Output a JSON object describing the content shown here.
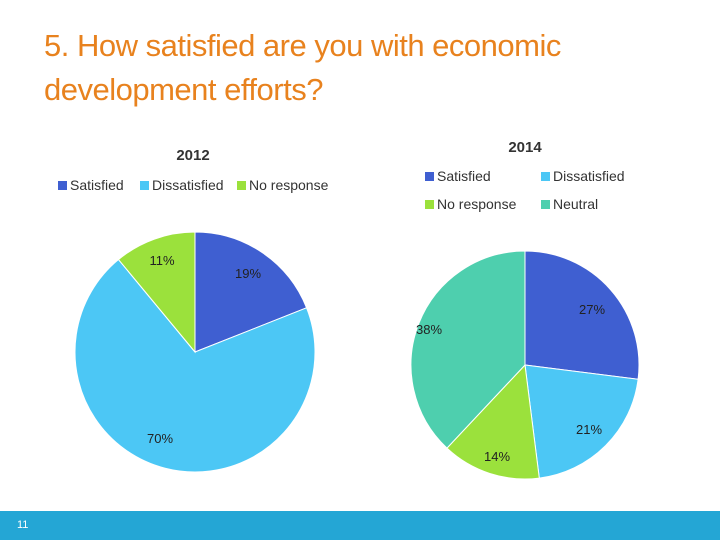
{
  "slide": {
    "title": "5. How satisfied are you with economic development efforts?",
    "page_number": "11"
  },
  "colors": {
    "title": "#e8821e",
    "footer": "#24a6d5",
    "satisfied": "#3f5fd1",
    "dissatisfied": "#4cc7f5",
    "no_response": "#9be13c",
    "neutral": "#4ecfae"
  },
  "chart_data": [
    {
      "type": "pie",
      "title": "2012",
      "legend_placement": "top",
      "categories": [
        "Satisfied",
        "Dissatisfied",
        "No response"
      ],
      "values": [
        19,
        70,
        11
      ],
      "data_labels": [
        "19%",
        "70%",
        "11%"
      ],
      "colors": [
        "#3f5fd1",
        "#4cc7f5",
        "#9be13c"
      ]
    },
    {
      "type": "pie",
      "title": "2014",
      "legend_placement": "top",
      "categories": [
        "Satisfied",
        "Dissatisfied",
        "No response",
        "Neutral"
      ],
      "values": [
        27,
        21,
        14,
        38
      ],
      "data_labels": [
        "27%",
        "21%",
        "14%",
        "38%"
      ],
      "colors": [
        "#3f5fd1",
        "#4cc7f5",
        "#9be13c",
        "#4ecfae"
      ]
    }
  ]
}
